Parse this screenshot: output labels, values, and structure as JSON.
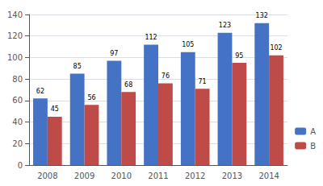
{
  "chart_data": {
    "type": "bar",
    "categories": [
      "2008",
      "2009",
      "2010",
      "2011",
      "2012",
      "2013",
      "2014"
    ],
    "series": [
      {
        "name": "A",
        "color": "#4472C4",
        "values": [
          62,
          85,
          97,
          112,
          105,
          123,
          132
        ]
      },
      {
        "name": "B",
        "color": "#BE4B48",
        "values": [
          45,
          56,
          68,
          76,
          71,
          95,
          102
        ]
      }
    ],
    "ylim": [
      0,
      140
    ],
    "yticks": [
      0,
      20,
      40,
      60,
      80,
      100,
      120,
      140
    ],
    "grid": true,
    "legend": "lower right",
    "data_labels": true
  }
}
